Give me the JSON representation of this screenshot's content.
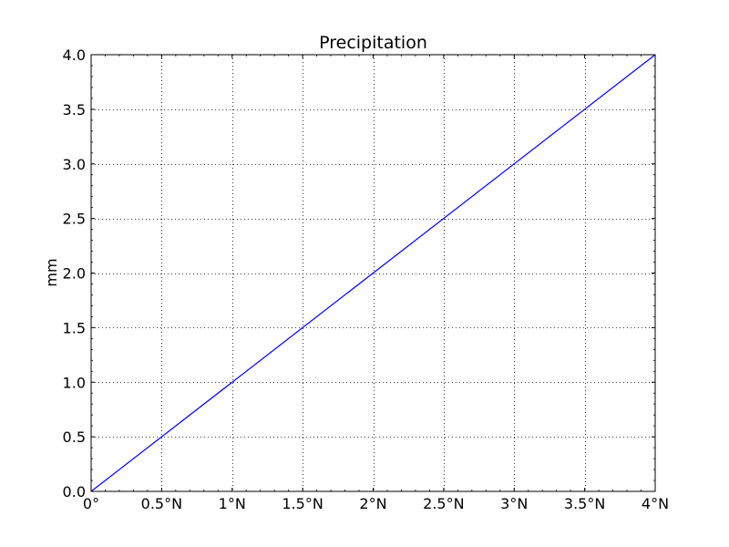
{
  "chart_data": {
    "type": "line",
    "title": "Precipitation",
    "xlabel": "",
    "ylabel": "mm",
    "xlim": [
      0,
      4
    ],
    "ylim": [
      0,
      4
    ],
    "grid": true,
    "x_ticks": [
      0,
      0.5,
      1,
      1.5,
      2,
      2.5,
      3,
      3.5,
      4
    ],
    "x_tick_labels": [
      "0°",
      "0.5°N",
      "1°N",
      "1.5°N",
      "2°N",
      "2.5°N",
      "3°N",
      "3.5°N",
      "4°N"
    ],
    "y_ticks": [
      0,
      0.5,
      1,
      1.5,
      2,
      2.5,
      3,
      3.5,
      4
    ],
    "y_tick_labels": [
      "0.0",
      "0.5",
      "1.0",
      "1.5",
      "2.0",
      "2.5",
      "3.0",
      "3.5",
      "4.0"
    ],
    "series": [
      {
        "color": "#0000ff",
        "x": [
          0,
          4
        ],
        "y": [
          0,
          4
        ]
      }
    ]
  }
}
